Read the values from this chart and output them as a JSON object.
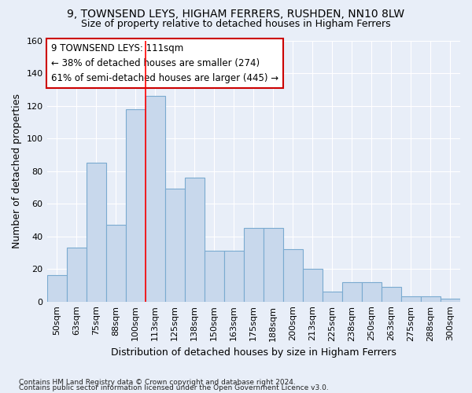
{
  "title_line1": "9, TOWNSEND LEYS, HIGHAM FERRERS, RUSHDEN, NN10 8LW",
  "title_line2": "Size of property relative to detached houses in Higham Ferrers",
  "xlabel": "Distribution of detached houses by size in Higham Ferrers",
  "ylabel": "Number of detached properties",
  "categories": [
    "50sqm",
    "63sqm",
    "75sqm",
    "88sqm",
    "100sqm",
    "113sqm",
    "125sqm",
    "138sqm",
    "150sqm",
    "163sqm",
    "175sqm",
    "188sqm",
    "200sqm",
    "213sqm",
    "225sqm",
    "238sqm",
    "250sqm",
    "263sqm",
    "275sqm",
    "288sqm",
    "300sqm"
  ],
  "values": [
    16,
    33,
    85,
    47,
    118,
    126,
    69,
    76,
    31,
    31,
    45,
    45,
    32,
    20,
    6,
    12,
    12,
    9,
    3,
    3,
    2
  ],
  "bar_color": "#c8d8ec",
  "bar_edge_color": "#7aaad0",
  "marker_line_index": 4.5,
  "annotation_text_line1": "9 TOWNSEND LEYS: 111sqm",
  "annotation_text_line2": "← 38% of detached houses are smaller (274)",
  "annotation_text_line3": "61% of semi-detached houses are larger (445) →",
  "annotation_box_facecolor": "#ffffff",
  "annotation_box_edgecolor": "#cc0000",
  "ylim": [
    0,
    160
  ],
  "yticks": [
    0,
    20,
    40,
    60,
    80,
    100,
    120,
    140,
    160
  ],
  "background_color": "#e8eef8",
  "footer_line1": "Contains HM Land Registry data © Crown copyright and database right 2024.",
  "footer_line2": "Contains public sector information licensed under the Open Government Licence v3.0.",
  "grid_color": "#ffffff",
  "title_fontsize": 10,
  "subtitle_fontsize": 9,
  "annotation_fontsize": 8.5,
  "ylabel_fontsize": 9,
  "xlabel_fontsize": 9,
  "tick_fontsize": 8,
  "footer_fontsize": 6.5
}
